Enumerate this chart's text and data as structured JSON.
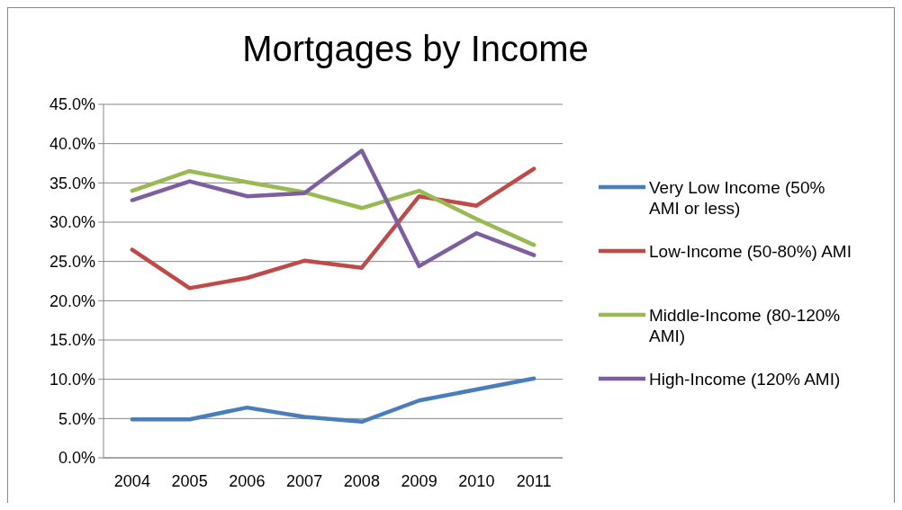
{
  "chart_data": {
    "type": "line",
    "title": "Mortgages by Income",
    "categories": [
      "2004",
      "2005",
      "2006",
      "2007",
      "2008",
      "2009",
      "2010",
      "2011"
    ],
    "series": [
      {
        "name": "Very Low Income (50% AMI or less)",
        "color": "#4a7ebb",
        "values": [
          4.9,
          4.9,
          6.4,
          5.2,
          4.6,
          7.3,
          8.7,
          10.1
        ]
      },
      {
        "name": "Low-Income (50-80%) AMI",
        "color": "#be4b48",
        "values": [
          26.5,
          21.6,
          22.9,
          25.1,
          24.2,
          33.3,
          32.1,
          36.8
        ]
      },
      {
        "name": "Middle-Income (80-120% AMI)",
        "color": "#98b954",
        "values": [
          34.0,
          36.5,
          35.1,
          33.8,
          31.8,
          34.0,
          30.4,
          27.1
        ]
      },
      {
        "name": "High-Income (120% AMI)",
        "color": "#7d5fa0",
        "values": [
          32.8,
          35.2,
          33.3,
          33.7,
          39.1,
          24.4,
          28.6,
          25.8
        ]
      }
    ],
    "ylim": [
      0,
      45
    ],
    "yticks": [
      {
        "value": 0,
        "label": "0.0%"
      },
      {
        "value": 5,
        "label": "5.0%"
      },
      {
        "value": 10,
        "label": "10.0%"
      },
      {
        "value": 15,
        "label": "15.0%"
      },
      {
        "value": 20,
        "label": "20.0%"
      },
      {
        "value": 25,
        "label": "25.0%"
      },
      {
        "value": 30,
        "label": "30.0%"
      },
      {
        "value": 35,
        "label": "35.0%"
      },
      {
        "value": 40,
        "label": "40.0%"
      },
      {
        "value": 45,
        "label": "45.0%"
      }
    ],
    "grid": "y",
    "legend": "right",
    "marker": "none",
    "line_style": "solid"
  }
}
